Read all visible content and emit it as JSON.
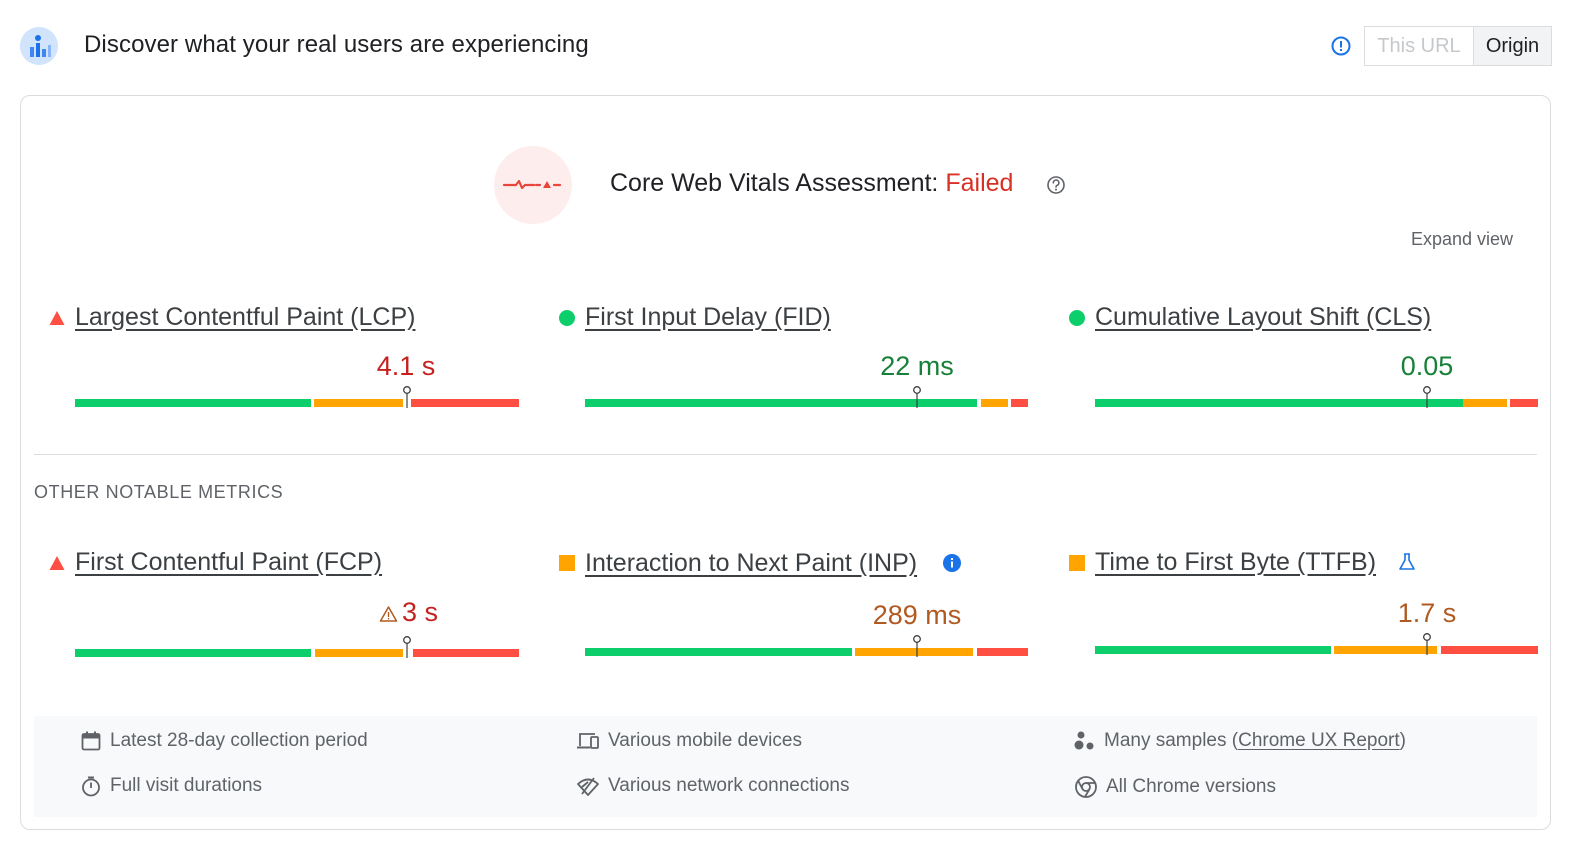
{
  "header": {
    "title": "Discover what your real users are experiencing",
    "logo_icon": "crux-logo-icon",
    "info_icon": "info-circle-icon",
    "toggle": {
      "options": [
        "This URL",
        "Origin"
      ],
      "selected": "Origin"
    }
  },
  "assessment": {
    "label": "Core Web Vitals Assessment:",
    "status": "Failed",
    "status_color": "#d93025",
    "badge_icon": "failed-vitals-icon",
    "help_icon": "help-circle-icon",
    "expand_label": "Expand view"
  },
  "core_metrics": [
    {
      "name": "Largest Contentful Paint (LCP)",
      "value": "4.1 s",
      "rating": "poor",
      "icon": "red-triangle-icon",
      "marker": 0.745
    },
    {
      "name": "First Input Delay (FID)",
      "value": "22 ms",
      "rating": "good",
      "icon": "green-circle-icon",
      "marker": 0.75
    },
    {
      "name": "Cumulative Layout Shift (CLS)",
      "value": "0.05",
      "rating": "good",
      "icon": "green-circle-icon",
      "marker": 0.75
    }
  ],
  "other_section_label": "OTHER NOTABLE METRICS",
  "other_metrics": [
    {
      "name": "First Contentful Paint (FCP)",
      "value": "3 s",
      "rating": "poor",
      "icon": "red-triangle-icon",
      "warning_icon": "warning-triangle-icon",
      "marker": 0.745
    },
    {
      "name": "Interaction to Next Paint (INP)",
      "value": "289 ms",
      "rating": "needs-improvement",
      "icon": "orange-square-icon",
      "badge_icon": "info-filled-icon",
      "marker": 0.75
    },
    {
      "name": "Time to First Byte (TTFB)",
      "value": "1.7 s",
      "rating": "needs-improvement",
      "icon": "orange-square-icon",
      "badge_icon": "experimental-flask-icon",
      "marker": 0.75
    }
  ],
  "footer": {
    "collection_period": "Latest 28-day collection period",
    "devices": "Various mobile devices",
    "samples_prefix": "Many samples (",
    "samples_link": "Chrome UX Report",
    "samples_suffix": ")",
    "visit_durations": "Full visit durations",
    "connections": "Various network connections",
    "chrome_versions": "All Chrome versions"
  },
  "colors": {
    "good": "#0cce6b",
    "needs_improvement": "#ffa400",
    "poor": "#ff4e42",
    "text_poor": "#c5221f",
    "text_good": "#188038",
    "text_ni": "#b05a21"
  }
}
